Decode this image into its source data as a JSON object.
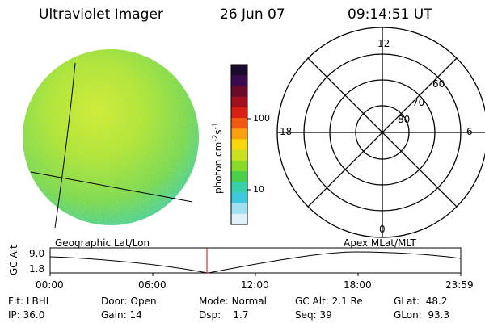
{
  "header": {
    "instrument": "Ultraviolet Imager",
    "date": "26 Jun 07",
    "time": "09:14:51 UT"
  },
  "colorbar": {
    "label": "photon cm",
    "label_sup1": "-2",
    "label_s": "s",
    "label_sup2": "-1",
    "ticks": [
      "100",
      "10"
    ],
    "colors": [
      "#1a0b2e",
      "#3a0b4e",
      "#6b0b2a",
      "#a0101c",
      "#d82012",
      "#f05a10",
      "#f8a010",
      "#f8d80c",
      "#c8e020",
      "#8ada2a",
      "#4ad04a",
      "#38d0a8",
      "#40c8e0",
      "#a0e0f0",
      "#e0f0f8"
    ]
  },
  "image": {
    "projection_label": "Geographic Lat/Lon",
    "base_color": "#a6e32a"
  },
  "polar": {
    "projection_label": "Apex MLat/MLT",
    "mlt_labels": {
      "top": "12",
      "left": "18",
      "right": "6",
      "bottom": "0"
    },
    "mlat_labels": [
      "60",
      "70",
      "80"
    ]
  },
  "altitude_plot": {
    "ylabel": "GC Alt",
    "ymax": "9.0",
    "ymin": "1.8",
    "xticks": [
      "00:00",
      "06:00",
      "12:00",
      "18:00",
      "23:59"
    ],
    "current_time_color": "#dd0000"
  },
  "status": {
    "flt_label": "Flt:",
    "flt_value": "LBHL",
    "ip_label": "IP:",
    "ip_value": "36.0",
    "door_label": "Door:",
    "door_value": "Open",
    "gain_label": "Gain:",
    "gain_value": "14",
    "mode_label": "Mode:",
    "mode_value": "Normal",
    "dsp_label": "Dsp:",
    "dsp_value": "1.7",
    "gcalt_label": "GC Alt:",
    "gcalt_value": "2.1 Re",
    "seq_label": "Seq:",
    "seq_value": "39",
    "glat_label": "GLat:",
    "glat_value": "48.2",
    "glon_label": "GLon:",
    "glon_value": "93.3"
  }
}
